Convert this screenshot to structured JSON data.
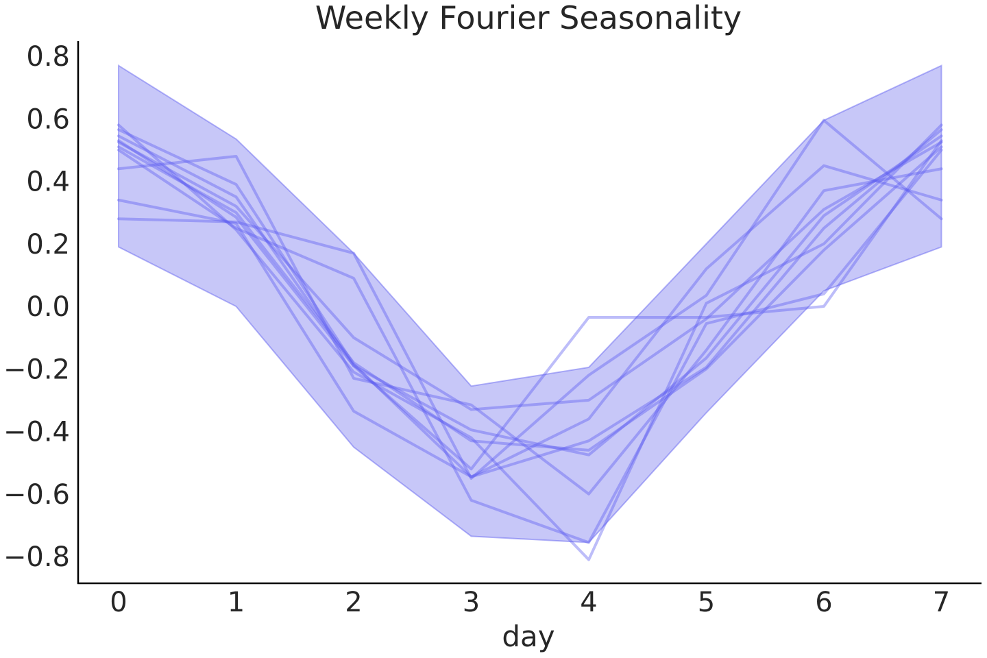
{
  "chart_data": {
    "type": "line",
    "title": "Weekly Fourier Seasonality",
    "xlabel": "day",
    "ylabel": "",
    "xlim": [
      -0.35,
      7.35
    ],
    "ylim": [
      -0.88,
      0.85
    ],
    "x_ticks": [
      0,
      1,
      2,
      3,
      4,
      5,
      6,
      7
    ],
    "x_tick_labels": [
      "0",
      "1",
      "2",
      "3",
      "4",
      "5",
      "6",
      "7"
    ],
    "y_ticks": [
      0.8,
      0.6,
      0.4,
      0.2,
      0.0,
      -0.2,
      -0.4,
      -0.6,
      -0.8
    ],
    "y_tick_labels": [
      "0.8",
      "0.6",
      "0.4",
      "0.2",
      "0.0",
      "−0.2",
      "−0.4",
      "−0.6",
      "−0.8"
    ],
    "grid": false,
    "colors": {
      "line": "#5a5aef",
      "band": "#8f8ff1",
      "axis": "#000000",
      "text": "#262626"
    },
    "x": [
      0,
      1,
      2,
      3,
      4,
      5,
      6,
      7
    ],
    "band": {
      "lower": [
        0.19,
        0.0,
        -0.45,
        -0.735,
        -0.755,
        -0.34,
        0.05,
        0.19
      ],
      "upper": [
        0.77,
        0.535,
        0.17,
        -0.255,
        -0.195,
        0.2,
        0.595,
        0.77
      ]
    },
    "series": [
      {
        "values": [
          0.28,
          0.27,
          0.17,
          -0.55,
          -0.22,
          0.035,
          0.595,
          0.28
        ]
      },
      {
        "values": [
          0.34,
          0.265,
          -0.335,
          -0.545,
          -0.36,
          0.12,
          0.45,
          0.34
        ]
      },
      {
        "values": [
          0.44,
          0.48,
          -0.23,
          -0.315,
          -0.6,
          -0.14,
          0.37,
          0.44
        ]
      },
      {
        "values": [
          0.5,
          0.25,
          0.09,
          -0.62,
          -0.755,
          -0.055,
          0.04,
          0.5
        ]
      },
      {
        "values": [
          0.51,
          0.3,
          -0.18,
          -0.43,
          -0.46,
          -0.2,
          0.18,
          0.51
        ]
      },
      {
        "values": [
          0.525,
          0.32,
          -0.1,
          -0.33,
          -0.3,
          -0.04,
          0.31,
          0.525
        ]
      },
      {
        "values": [
          0.545,
          0.35,
          -0.19,
          -0.395,
          -0.475,
          -0.165,
          0.29,
          0.545
        ]
      },
      {
        "values": [
          0.565,
          0.39,
          -0.185,
          -0.545,
          -0.43,
          -0.195,
          0.25,
          0.565
        ]
      },
      {
        "values": [
          0.58,
          0.245,
          -0.21,
          -0.42,
          -0.81,
          0.01,
          0.2,
          0.58
        ]
      },
      {
        "values": [
          0.53,
          0.285,
          -0.19,
          -0.52,
          -0.035,
          -0.035,
          0.0,
          0.53
        ]
      }
    ]
  }
}
